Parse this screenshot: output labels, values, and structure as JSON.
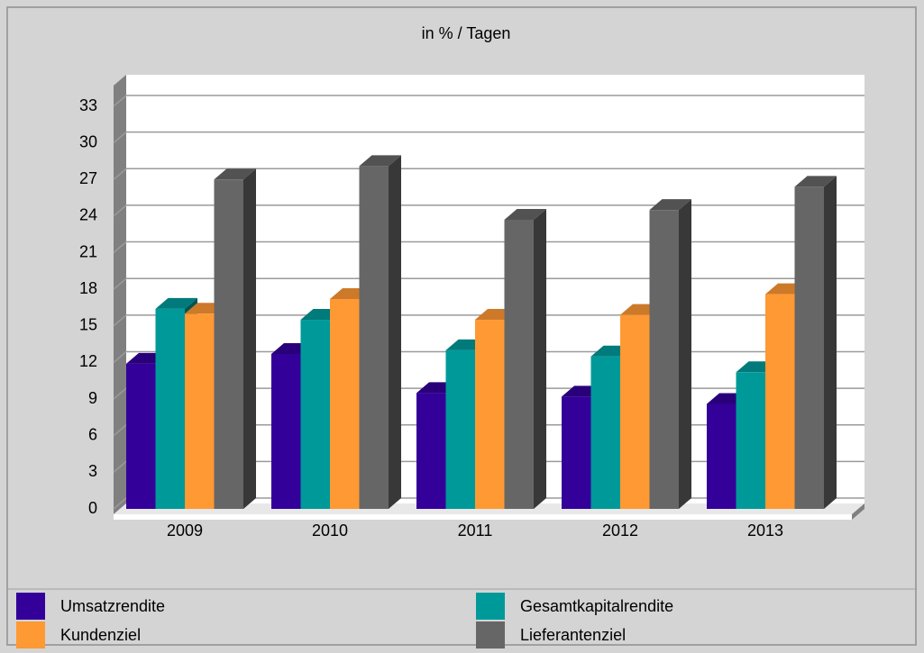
{
  "chart_data": {
    "type": "bar3d",
    "title": "in % / Tagen",
    "categories": [
      "2009",
      "2010",
      "2011",
      "2012",
      "2013"
    ],
    "series": [
      {
        "name": "Umsatzrendite",
        "color": "#330099",
        "values": [
          11.9,
          12.7,
          9.5,
          9.2,
          8.6
        ]
      },
      {
        "name": "Gesamtkapitalrendite",
        "color": "#009999",
        "values": [
          16.4,
          15.5,
          13.0,
          12.5,
          11.2
        ]
      },
      {
        "name": "Kundenziel",
        "color": "#ff9933",
        "values": [
          16.0,
          17.2,
          15.5,
          15.9,
          17.6
        ]
      },
      {
        "name": "Lieferantenziel",
        "color": "#666666",
        "values": [
          27.0,
          28.1,
          23.7,
          24.5,
          26.4
        ]
      }
    ],
    "ylim": [
      0,
      34.7
    ],
    "yticks": [
      0,
      3,
      6,
      9,
      12,
      15,
      18,
      21,
      24,
      27,
      30,
      33
    ],
    "grid": true
  }
}
